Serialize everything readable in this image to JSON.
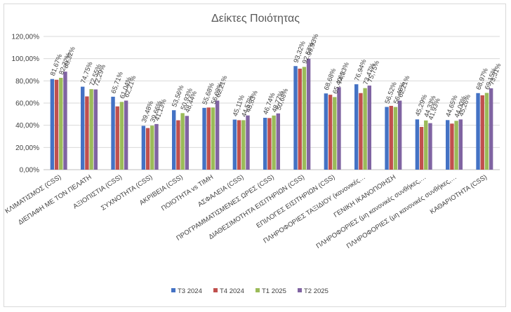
{
  "chart_data": {
    "type": "bar",
    "title": "Δείκτες Ποιότητας",
    "xlabel": "",
    "ylabel": "",
    "ylim": [
      0,
      120
    ],
    "yticks": [
      "0,00%",
      "20,00%",
      "40,00%",
      "60,00%",
      "80,00%",
      "100,00%",
      "120,00%"
    ],
    "grid": true,
    "legend_position": "bottom",
    "categories": [
      "ΚΛΙΜΑΤΙΣΜΟΣ (CSS)",
      "ΔΙΕΠΑΦΗ ΜΕ ΤΟΝ ΠΕΛΑΤΗ",
      "ΑΞΙΟΠΙΣΤΙΑ (CSS)",
      "ΣΥΧΝΟΤΗΤΑ (CSS)",
      "ΑΚΡΙΒΕΙΑ (CSS)",
      "ΠΟΙΟΤΗΤΑ vs ΤΙΜΗ",
      "ΑΣΦΑΛΕΙΑ (CSS)",
      "ΠΡΟΓΡΑΜΜΑΤΙΣΜΕΝΕΣ ΩΡΕΣ (CSS)",
      "ΔΙΑΘΕΣΙΜΟΤΗΤΑ ΕΙΣΙΤΗΡΙΩΝ (CSS)",
      "ΕΠΙΛΟΓΕΣ ΕΙΣΙΤΗΡΙΩΝ (CSS)",
      "ΠΛΗΡΟΦΟΡΙΕΣ ΤΑΞΙΔΙΟΥ (κανονικές…",
      "ΓΕΝΙΚΗ ΙΚΑΝΟΠΟΙΗΣΗ",
      "ΠΛΗΡΟΦΟΡΙΕΣ (μη κανονικές συνθήκες,…",
      "ΠΛΗΡΟΦΟΡΙΕΣ (μη κανονικές συνθήκες,…",
      "ΚΑΘΑΡΙΟΤΗΤΑ (CSS)"
    ],
    "series": [
      {
        "name": "Τ3 2024",
        "color": "#4472c4",
        "values": [
          81.67,
          74.75,
          65.71,
          39.48,
          53.56,
          55.68,
          45.11,
          46.74,
          93.32,
          68.68,
          76.94,
          56.52,
          45.29,
          44.65,
          68.97
        ],
        "labels": [
          "81,67%",
          "74,75%",
          "65,71%",
          "39,48%",
          "53,56%",
          "55,68%",
          "45,11%",
          "46,74%",
          "93,32%",
          "68,68%",
          "76,94%",
          "56,52%",
          "45,29%",
          "44,65%",
          "68,97%"
        ]
      },
      {
        "name": "Τ4 2024",
        "color": "#c0504d",
        "values": [
          81.0,
          66.0,
          57.0,
          37.5,
          44.5,
          56.0,
          44.57,
          46.5,
          91.0,
          67.5,
          69.0,
          57.5,
          38.5,
          41.5,
          67.0
        ],
        "labels": []
      },
      {
        "name": "Τ1 2025",
        "color": "#9bbb59",
        "values": [
          82.72,
          72.55,
          61.04,
          39.66,
          50.93,
          56.03,
          44.57,
          48.77,
          92.57,
          65.4,
          73.47,
          56.48,
          44.33,
          44.0,
          69.15
        ],
        "labels": [
          "82,72%",
          "72,55%",
          "61,04%",
          "39,66%",
          "50,93%",
          "56,03%",
          "44,57%",
          "48,77%",
          "92,57%",
          "65,40%",
          "73,47%",
          "56,48%",
          "44,33%",
          "44,00%",
          "69,15%"
        ]
      },
      {
        "name": "Τ2 2025",
        "color": "#8064a2",
        "values": [
          88.32,
          72.29,
          62.21,
          41.13,
          48.44,
          62.21,
          48.83,
          50.68,
          99.93,
          74.33,
          75.75,
          62.21,
          41.93,
          45.26,
          73.31
        ],
        "labels": [
          "88,32%",
          "72,29%",
          "62,21%",
          "41,13%",
          "48,44%",
          "62,21%",
          "48,83%",
          "50,68%",
          "99,93%",
          "74,33%",
          "75,75%",
          "62,21%",
          "41,93%",
          "45,26%",
          "73,31%"
        ]
      }
    ]
  }
}
